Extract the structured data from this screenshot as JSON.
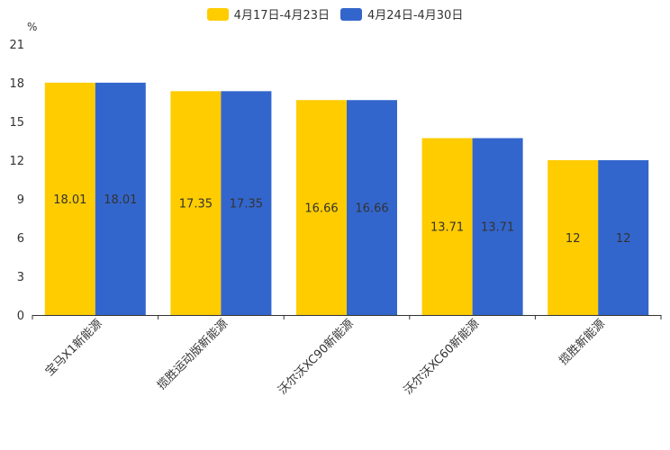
{
  "chart_data": {
    "type": "bar",
    "unit_label": "%",
    "categories": [
      "宝马X1新能源",
      "揽胜运动版新能源",
      "沃尔沃XC90新能源",
      "沃尔沃XC60新能源",
      "揽胜新能源"
    ],
    "series": [
      {
        "name": "4月17日-4月23日",
        "color": "#FFCC00",
        "values": [
          18.01,
          17.35,
          16.66,
          13.71,
          12
        ],
        "labels": [
          "18.01",
          "17.35",
          "16.66",
          "13.71",
          "12"
        ]
      },
      {
        "name": "4月24日-4月30日",
        "color": "#3366CC",
        "values": [
          18.01,
          17.35,
          16.66,
          13.71,
          12
        ],
        "labels": [
          "18.01",
          "17.35",
          "16.66",
          "13.71",
          "12"
        ]
      }
    ],
    "ylim": [
      0,
      21
    ],
    "yticks": [
      0,
      3,
      6,
      9,
      12,
      15,
      18,
      21
    ],
    "ytick_labels": [
      "0",
      "3",
      "6",
      "9",
      "12",
      "15",
      "18",
      "21"
    ],
    "title": "",
    "xlabel": "",
    "ylabel": "",
    "grid": false,
    "legend_position": "top-center"
  }
}
